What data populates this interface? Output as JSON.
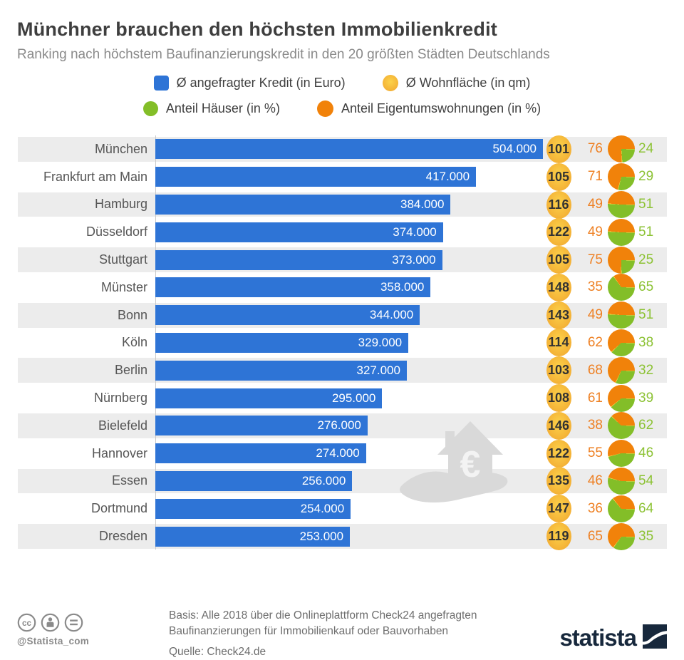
{
  "header": {
    "title": "Münchner brauchen den höchsten Immobilienkredit",
    "subtitle": "Ranking nach höchstem Baufinanzierungskredit in den 20 größten Städten Deutschlands"
  },
  "legend": {
    "items": [
      {
        "label": "Ø angefragter Kredit (in Euro)",
        "swatch": "blue-square"
      },
      {
        "label": "Ø Wohnfläche (in qm)",
        "swatch": "yellow-circle"
      },
      {
        "label": "Anteil Häuser (in %)",
        "swatch": "green-circle"
      },
      {
        "label": "Anteil Eigentumswohnungen (in %)",
        "swatch": "orange-circle"
      }
    ]
  },
  "chart_data": {
    "type": "bar",
    "orientation": "horizontal",
    "categories": [
      "München",
      "Frankfurt am Main",
      "Hamburg",
      "Düsseldorf",
      "Stuttgart",
      "Münster",
      "Bonn",
      "Köln",
      "Berlin",
      "Nürnberg",
      "Bielefeld",
      "Hannover",
      "Essen",
      "Dortmund",
      "Dresden"
    ],
    "series": [
      {
        "name": "Ø angefragter Kredit (in Euro)",
        "values": [
          504000,
          417000,
          384000,
          374000,
          373000,
          358000,
          344000,
          329000,
          327000,
          295000,
          276000,
          274000,
          256000,
          254000,
          253000
        ]
      },
      {
        "name": "Ø Wohnfläche (in qm)",
        "values": [
          101,
          105,
          116,
          122,
          105,
          148,
          143,
          114,
          103,
          108,
          146,
          122,
          135,
          147,
          119
        ]
      },
      {
        "name": "Anteil Häuser (in %)",
        "values": [
          24,
          29,
          51,
          51,
          25,
          65,
          51,
          38,
          32,
          39,
          62,
          46,
          54,
          64,
          35
        ]
      },
      {
        "name": "Anteil Eigentumswohnungen (in %)",
        "values": [
          76,
          71,
          49,
          49,
          75,
          35,
          49,
          62,
          68,
          61,
          38,
          55,
          46,
          36,
          65
        ]
      }
    ],
    "xlim": [
      0,
      504000
    ],
    "value_label_format": "thousands-dot",
    "pie_note": "per-row mini pie: green = Anteil Häuser starting at 3 o'clock clockwise, orange = Anteil Eigentumswohnungen",
    "grid": false,
    "legend_position": "top-center"
  },
  "colors": {
    "bar_blue": "#2e74d6",
    "badge_yellow": "#f3ae34",
    "badge_yellow_light": "#fcd24a",
    "pie_green": "#83be28",
    "pie_orange": "#f1820a",
    "pie_divider": "#fdd94f",
    "num_orange": "#ee8023",
    "num_green": "#8cc234",
    "row_alt": "#ececec",
    "axis_gray": "#c9c9c9",
    "title_text": "#3e3e3e",
    "subtitle_text": "#8a8a8a",
    "label_text": "#565656",
    "footer_text": "#6e6e6e",
    "brand_navy": "#17283c",
    "watermark_gray": "#d9d9d9"
  },
  "icons": {
    "watermark": "hand-holding-house-with-euro",
    "cc_license": [
      "cc-icon",
      "attribution-person-icon",
      "no-derivatives-equals-icon"
    ],
    "brand_mark": "statista-swoosh"
  },
  "footer": {
    "handle": "@Statista_com",
    "basis": "Basis: Alle 2018 über die Onlineplattform Check24 angefragten Baufinanzierungen für Immobilienkauf oder Bauvorhaben",
    "quelle": "Quelle: Check24.de",
    "brand": "statista"
  }
}
